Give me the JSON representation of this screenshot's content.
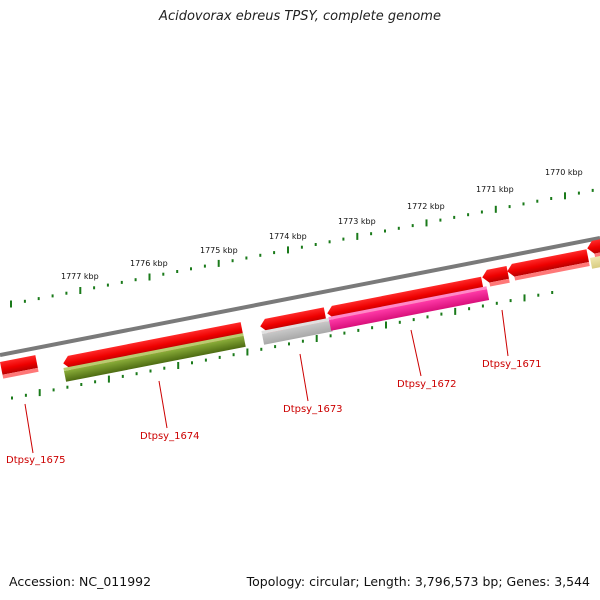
{
  "title": "Acidovorax ebreus TPSY, complete genome",
  "footer": {
    "accession": "Accession: NC_011992",
    "topology": "Topology: circular; Length: 3,796,573 bp; Genes: 3,544"
  },
  "colors": {
    "backbone": "#7a7a7a",
    "forward_gene": "#ff0000",
    "tick": "#1a7a1a",
    "label": "#cc0000",
    "highlight_1674": "#6b8e23",
    "highlight_1673": "#bbbbbb",
    "highlight_1672": "#ff1493",
    "partial_right": "#e8e0a0"
  },
  "kbp_ticks": [
    "1777 kbp",
    "1776 kbp",
    "1775 kbp",
    "1774 kbp",
    "1773 kbp",
    "1772 kbp",
    "1771 kbp",
    "1770 kbp"
  ],
  "genes": [
    {
      "label": "Dtpsy_1675",
      "color": "#ff0000"
    },
    {
      "label": "Dtpsy_1674",
      "color": "#6b8e23"
    },
    {
      "label": "Dtpsy_1673",
      "color": "#bbbbbb"
    },
    {
      "label": "Dtpsy_1672",
      "color": "#ff1493"
    },
    {
      "label": "Dtpsy_1671",
      "color": "#ff0000"
    }
  ]
}
